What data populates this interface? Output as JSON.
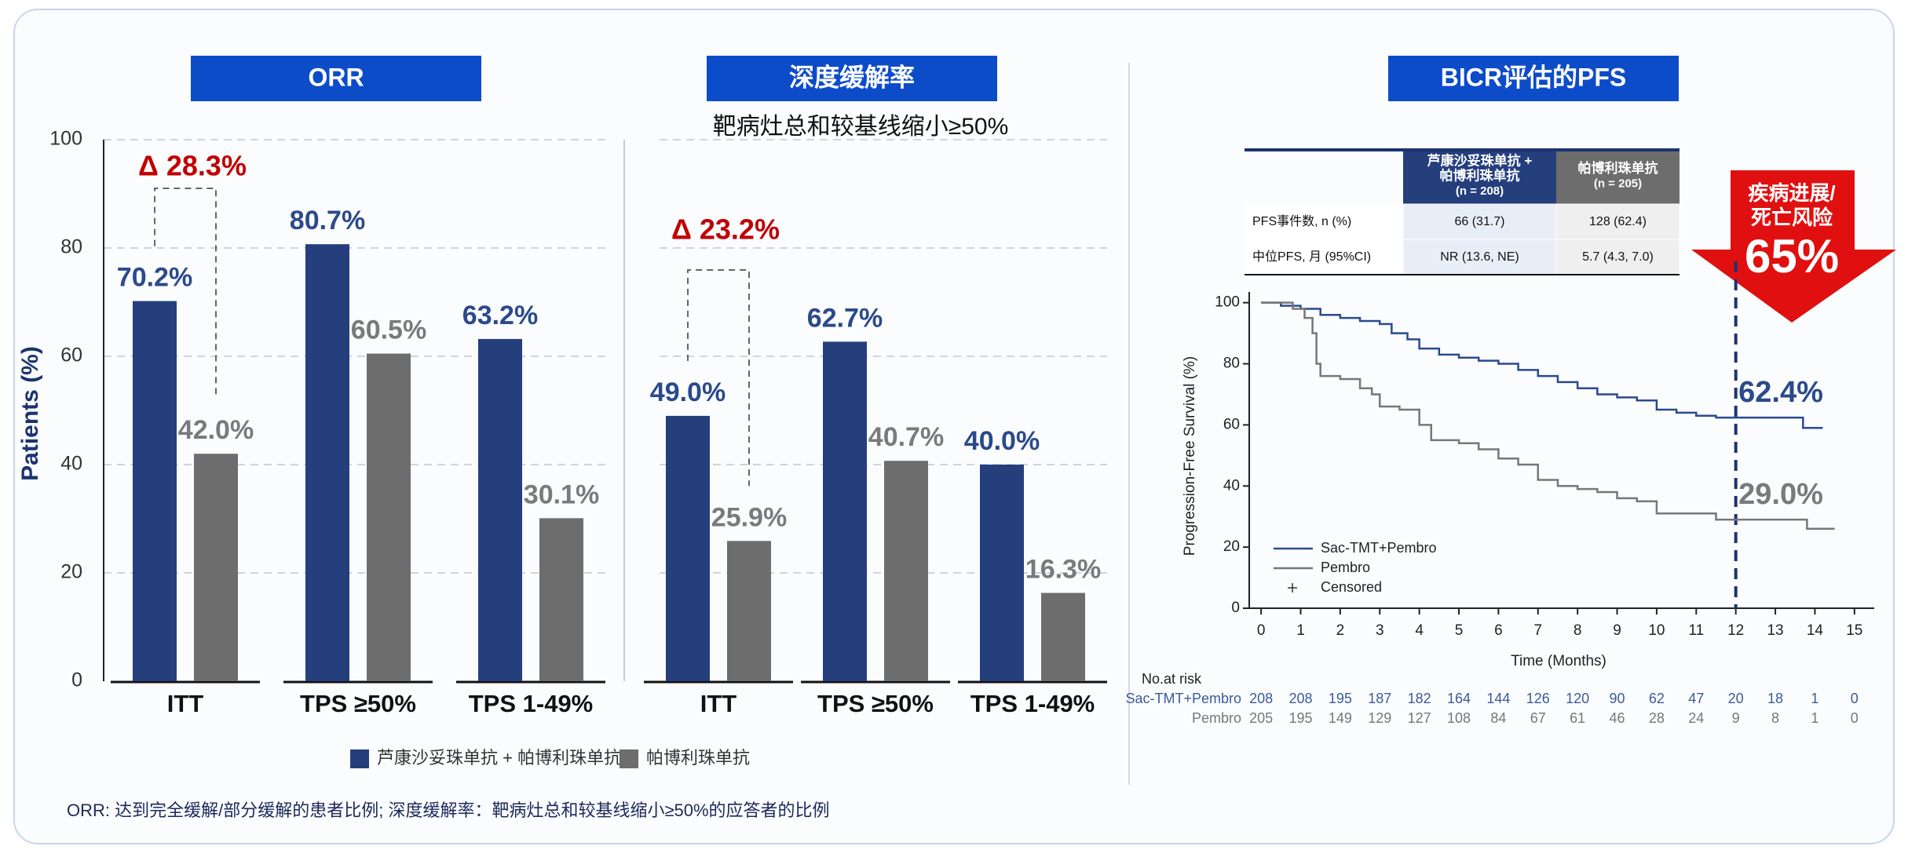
{
  "chart_data": [
    {
      "type": "bar",
      "title": "ORR",
      "ylabel": "Patients (%)",
      "categories": [
        "ITT",
        "TPS ≥50%",
        "TPS 1-49%"
      ],
      "series": [
        {
          "name": "芦康沙妥珠单抗 + 帕博利珠单抗",
          "color": "#253f7d",
          "label_color": "#2b4a8a",
          "values": [
            70.2,
            80.7,
            63.2
          ],
          "value_labels": [
            "70.2%",
            "80.7%",
            "63.2%"
          ]
        },
        {
          "name": "帕博利珠单抗",
          "color": "#6d6d6d",
          "label_color": "#7a7a7a",
          "values": [
            42.0,
            60.5,
            30.1
          ],
          "value_labels": [
            "42.0%",
            "60.5%",
            "30.1%"
          ]
        }
      ],
      "ylim": [
        0,
        100
      ],
      "yticks": [
        0,
        20,
        40,
        60,
        80,
        100
      ],
      "grid": true,
      "annotation": "Δ 28.3%",
      "annotation_color": "#c00000"
    },
    {
      "type": "bar",
      "title": "深度缓解率",
      "subtitle": "靶病灶总和较基线缩小≥50%",
      "categories": [
        "ITT",
        "TPS ≥50%",
        "TPS 1-49%"
      ],
      "series": [
        {
          "color": "#253f7d",
          "label_color": "#2b4a8a",
          "values": [
            49.0,
            62.7,
            40.0
          ],
          "value_labels": [
            "49.0%",
            "62.7%",
            "40.0%"
          ]
        },
        {
          "color": "#6d6d6d",
          "label_color": "#7a7a7a",
          "values": [
            25.9,
            40.7,
            16.3
          ],
          "value_labels": [
            "25.9%",
            "40.7%",
            "16.3%"
          ]
        }
      ],
      "ylim": [
        0,
        100
      ],
      "grid": true,
      "annotation": "Δ 23.2%",
      "annotation_color": "#c00000"
    },
    {
      "type": "line",
      "title": "BICR评估的PFS",
      "xlabel": "Time (Months)",
      "ylabel": "Progression-Free Survival (%)",
      "series": [
        {
          "name": "Sac-TMT+Pembro",
          "color": "#2a4a8f",
          "x": [
            0,
            0.5,
            1,
            1.5,
            2,
            2.5,
            3,
            3.3,
            3.7,
            4,
            4.5,
            5,
            5.5,
            6,
            6.5,
            7,
            7.5,
            8,
            8.5,
            9,
            9.5,
            10,
            10.5,
            11,
            11.5,
            13.7,
            14.2
          ],
          "values": [
            100,
            99,
            98,
            96,
            95,
            94,
            93,
            90,
            88,
            85,
            83,
            82,
            81,
            80,
            78,
            76,
            74,
            72,
            70,
            69,
            68,
            65,
            64,
            63,
            62.4,
            59,
            59
          ]
        },
        {
          "name": "Pembro",
          "color": "#777777",
          "x": [
            0,
            0.8,
            1.1,
            1.3,
            1.4,
            1.5,
            2,
            2.5,
            2.8,
            3,
            3.5,
            4,
            4.3,
            5,
            5.5,
            6,
            6.5,
            7,
            7.5,
            8,
            8.5,
            9,
            9.5,
            10,
            11.5,
            13.8,
            14.5
          ],
          "values": [
            100,
            98,
            95,
            90,
            80,
            76,
            75,
            72,
            70,
            66,
            65,
            60,
            55,
            54,
            52,
            49,
            47,
            42,
            40,
            39,
            38,
            36,
            35,
            31,
            29,
            26,
            26
          ]
        }
      ],
      "censored_label": "Censored",
      "xlim": [
        -0.3,
        15.5
      ],
      "xticks": [
        0,
        1,
        2,
        3,
        4,
        5,
        6,
        7,
        8,
        9,
        10,
        11,
        12,
        13,
        14,
        15
      ],
      "ylim": [
        0,
        103
      ],
      "yticks": [
        0,
        20,
        40,
        60,
        80,
        100
      ],
      "reference_x": 12,
      "annotations": [
        {
          "y": 62.4,
          "label": "62.4%",
          "color": "#2b4a8a"
        },
        {
          "y": 29.0,
          "label": "29.0%",
          "color": "#7a7a7a"
        }
      ],
      "risk_table": {
        "title": "No.at risk",
        "rows": [
          {
            "name": "Sac-TMT+Pembro",
            "color": "#3b5b9b",
            "values": [
              "208",
              "208",
              "195",
              "187",
              "182",
              "164",
              "144",
              "126",
              "120",
              "90",
              "62",
              "47",
              "20",
              "18",
              "1",
              "0"
            ]
          },
          {
            "name": "Pembro",
            "color": "#777777",
            "values": [
              "205",
              "195",
              "149",
              "129",
              "127",
              "108",
              "84",
              "67",
              "61",
              "46",
              "28",
              "24",
              "9",
              "8",
              "1",
              "0"
            ]
          }
        ]
      }
    }
  ],
  "pfs_table": {
    "header": [
      [],
      [
        "芦康沙妥珠单抗 +",
        "帕博利珠单抗",
        "(n = 208)"
      ],
      [
        "帕博利珠单抗",
        "(n = 205)"
      ]
    ],
    "rows": [
      [
        "PFS事件数, n (%)",
        "66 (31.7)",
        "128 (62.4)"
      ],
      [
        "中位PFS, 月 (95%CI)",
        "NR (13.6, NE)",
        "5.7 (4.3, 7.0)"
      ]
    ]
  },
  "callout": {
    "lines": [
      "疾病进展/",
      "死亡风险"
    ],
    "value": "65%"
  },
  "footnote": "ORR: 达到完全缓解/部分缓解的患者比例; 深度缓解率：靶病灶总和较基线缩小≥50%的应答者的比例"
}
